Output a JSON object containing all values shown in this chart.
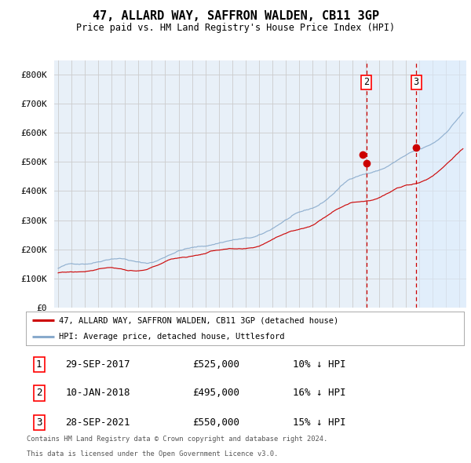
{
  "title": "47, ALLARD WAY, SAFFRON WALDEN, CB11 3GP",
  "subtitle": "Price paid vs. HM Land Registry's House Price Index (HPI)",
  "legend_red": "47, ALLARD WAY, SAFFRON WALDEN, CB11 3GP (detached house)",
  "legend_blue": "HPI: Average price, detached house, Uttlesford",
  "transactions": [
    {
      "label": "1",
      "date": "29-SEP-2017",
      "price": "£525,000",
      "pct": "10% ↓ HPI",
      "x_year": 2017.75,
      "y_val": 525000
    },
    {
      "label": "2",
      "date": "10-JAN-2018",
      "price": "£495,000",
      "pct": "16% ↓ HPI",
      "x_year": 2018.04,
      "y_val": 495000
    },
    {
      "label": "3",
      "date": "28-SEP-2021",
      "price": "£550,000",
      "pct": "15% ↓ HPI",
      "x_year": 2021.75,
      "y_val": 550000
    }
  ],
  "footnote1": "Contains HM Land Registry data © Crown copyright and database right 2024.",
  "footnote2": "This data is licensed under the Open Government Licence v3.0.",
  "ylim_max": 800000,
  "xlim_start": 1994.7,
  "xlim_end": 2025.5,
  "bg_chart": "#e8f0f8",
  "bg_figure": "#ffffff",
  "grid_color": "#cccccc",
  "red_line_color": "#cc0000",
  "blue_line_color": "#88aacc",
  "dashed_vline_color": "#cc0000",
  "shade_color": "#ddeeff",
  "shade_start": 2021.9,
  "yticks": [
    0,
    100000,
    200000,
    300000,
    400000,
    500000,
    600000,
    700000,
    800000
  ],
  "ytick_labels": [
    "£0",
    "£100K",
    "£200K",
    "£300K",
    "£400K",
    "£500K",
    "£600K",
    "£700K",
    "£800K"
  ]
}
